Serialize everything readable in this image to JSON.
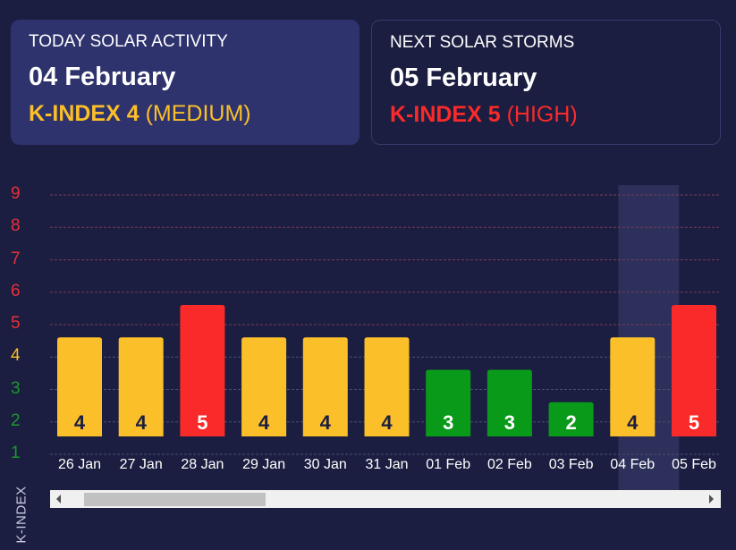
{
  "today": {
    "title": "TODAY SOLAR ACTIVITY",
    "date": "04 February",
    "kindex_label": "K-INDEX 4",
    "level": "(MEDIUM)",
    "color": "#fbbf2a"
  },
  "next": {
    "title": "NEXT SOLAR STORMS",
    "date": "05 February",
    "kindex_label": "K-INDEX 5",
    "level": "(HIGH)",
    "color": "#fb2a2a"
  },
  "colors": {
    "low": "#0a9a1a",
    "medium": "#fbbf2a",
    "high": "#fb2a2a",
    "highlight": "#2c305a"
  },
  "chart_data": {
    "type": "bar",
    "ylabel": "K-INDEX",
    "ylim": [
      1,
      9
    ],
    "yticks": [
      1,
      2,
      3,
      4,
      5,
      6,
      7,
      8,
      9
    ],
    "grid": true,
    "categories": [
      "26 Jan",
      "27 Jan",
      "28 Jan",
      "29 Jan",
      "30 Jan",
      "31 Jan",
      "01 Feb",
      "02 Feb",
      "03 Feb",
      "04 Feb",
      "05 Feb"
    ],
    "values": [
      4,
      4,
      5,
      4,
      4,
      4,
      3,
      3,
      2,
      4,
      5
    ],
    "highlighted": "04 Feb"
  }
}
